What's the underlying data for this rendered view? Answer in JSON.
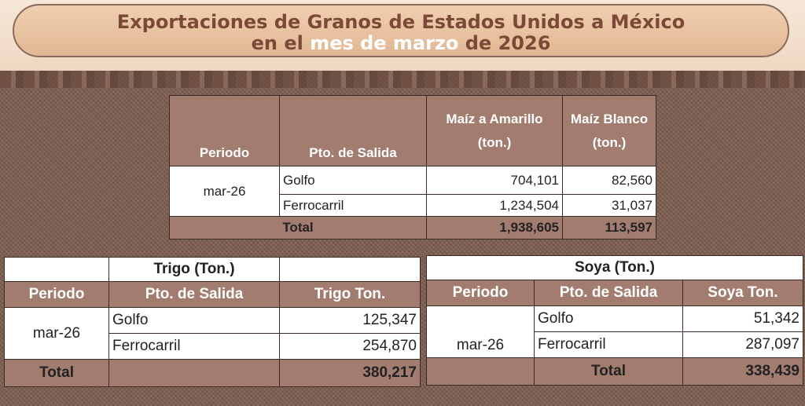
{
  "title": {
    "line1": "Exportaciones de Granos de Estados Unidos a México",
    "line2_pre": "en el ",
    "line2_highlight": "mes de marzo",
    "line2_post": " de 2026"
  },
  "maiz": {
    "headers": [
      "Periodo",
      "Pto. de Salida",
      "Maíz a Amarillo",
      "(ton.)",
      "Maíz Blanco",
      "(ton.)"
    ],
    "period": "mar-26",
    "rows": [
      {
        "port": "Golfo",
        "amarillo": "704,101",
        "blanco": "82,560"
      },
      {
        "port": "Ferrocarril",
        "amarillo": "1,234,504",
        "blanco": "31,037"
      }
    ],
    "total": {
      "label": "Total",
      "amarillo": "1,938,605",
      "blanco": "113,597"
    }
  },
  "trigo": {
    "caption": "Trigo (Ton.)",
    "headers": [
      "Periodo",
      "Pto. de Salida",
      "Trigo Ton."
    ],
    "period": "mar-26",
    "rows": [
      {
        "port": "Golfo",
        "value": "125,347"
      },
      {
        "port": "Ferrocarril",
        "value": "254,870"
      }
    ],
    "total": {
      "label": "Total",
      "value": "380,217"
    }
  },
  "soya": {
    "caption": "Soya  (Ton.)",
    "headers": [
      "Periodo",
      "Pto. de Salida",
      "Soya Ton."
    ],
    "period": "mar-26",
    "rows": [
      {
        "port": "Golfo",
        "value": "51,342"
      },
      {
        "port": "Ferrocarril",
        "value": "287,097"
      }
    ],
    "total": {
      "label": "Total",
      "value": "338,439"
    }
  },
  "colors": {
    "header_bg": "#a27d6f",
    "title_text": "#7b4a36",
    "background": "#7d5d4f"
  }
}
